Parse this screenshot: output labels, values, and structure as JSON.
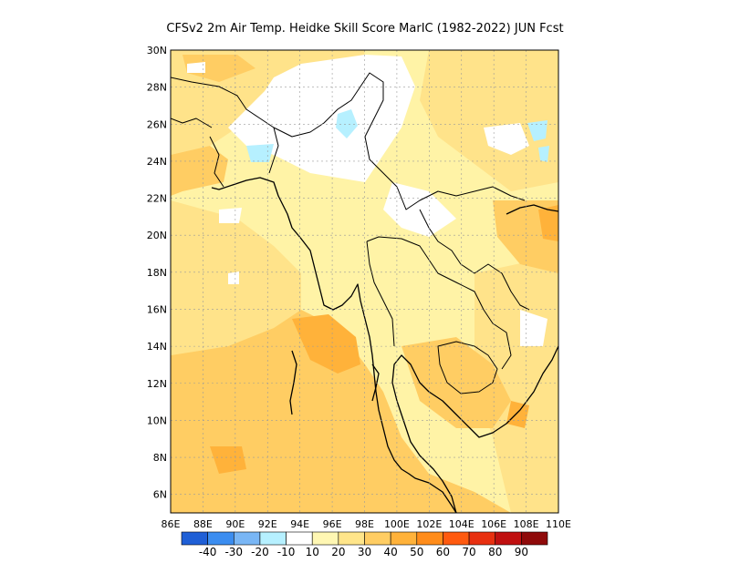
{
  "title": "CFSv2  2m Air Temp. Heidke Skill Score MarIC (1982-2022) JUN Fcst",
  "map": {
    "lon_range": [
      86,
      110
    ],
    "lat_range": [
      5,
      30
    ],
    "lon_labels": [
      "86E",
      "88E",
      "90E",
      "92E",
      "94E",
      "96E",
      "98E",
      "100E",
      "102E",
      "104E",
      "106E",
      "108E",
      "110E"
    ],
    "lat_labels": [
      "6N",
      "8N",
      "10N",
      "12N",
      "14N",
      "16N",
      "18N",
      "20N",
      "22N",
      "24N",
      "26N",
      "28N",
      "30N"
    ],
    "grid": true
  },
  "colorbar": {
    "colors": [
      "#1f5fd6",
      "#3b8df0",
      "#79b6f5",
      "#b6f0ff",
      "#ffffff",
      "#fff7b3",
      "#ffe58a",
      "#ffcd63",
      "#ffb23a",
      "#ff8c1a",
      "#ff5a0f",
      "#e83010",
      "#c01010",
      "#8f0a0a"
    ],
    "labels": [
      "-40",
      "-30",
      "-20",
      "-10",
      "10",
      "20",
      "30",
      "40",
      "50",
      "60",
      "70",
      "80",
      "90"
    ]
  }
}
